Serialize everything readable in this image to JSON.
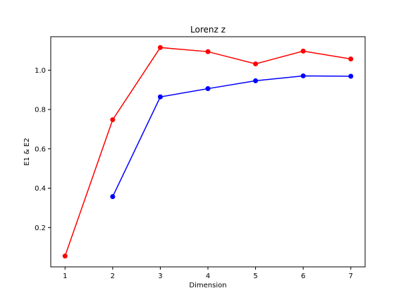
{
  "chart_data": {
    "type": "line",
    "title": "Lorenz z",
    "xlabel": "Dimension",
    "ylabel": "E1 & E2",
    "xlim": [
      0.7,
      7.3
    ],
    "ylim": [
      0.0,
      1.17
    ],
    "x_ticks": [
      1,
      2,
      3,
      4,
      5,
      6,
      7
    ],
    "y_ticks": [
      0.2,
      0.4,
      0.6,
      0.8,
      1.0
    ],
    "y_tick_labels": [
      "0.2",
      "0.4",
      "0.6",
      "0.8",
      "1.0"
    ],
    "grid": false,
    "series": [
      {
        "color": "#ff0000",
        "marker": "circle",
        "x": [
          1,
          2,
          3,
          4,
          5,
          6,
          7
        ],
        "y": [
          0.055,
          0.748,
          1.115,
          1.094,
          1.032,
          1.097,
          1.057
        ]
      },
      {
        "color": "#0000ff",
        "marker": "circle",
        "x": [
          2,
          3,
          4,
          5,
          6,
          7
        ],
        "y": [
          0.357,
          0.864,
          0.906,
          0.946,
          0.971,
          0.969
        ]
      }
    ]
  }
}
